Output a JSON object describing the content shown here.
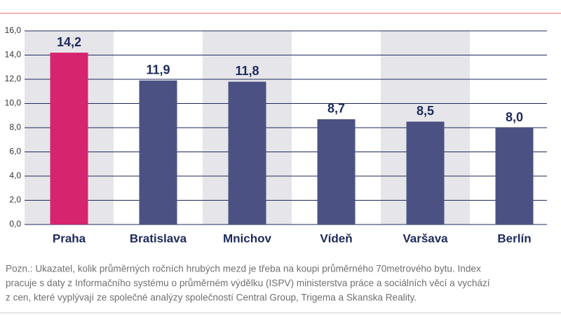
{
  "chart_data": {
    "type": "bar",
    "categories": [
      "Praha",
      "Bratislava",
      "Mnichov",
      "Vídeň",
      "Varšava",
      "Berlín"
    ],
    "values": [
      14.2,
      11.9,
      11.8,
      8.7,
      8.5,
      8.0
    ],
    "value_labels": [
      "14,2",
      "11,9",
      "11,8",
      "8,7",
      "8,5",
      "8,0"
    ],
    "colors": [
      "#d6246e",
      "#4b5283",
      "#4b5283",
      "#4b5283",
      "#4b5283",
      "#4b5283"
    ],
    "ylim": [
      0,
      16
    ],
    "yticks": [
      {
        "value": 0,
        "label": "0,0"
      },
      {
        "value": 2,
        "label": "2,0"
      },
      {
        "value": 4,
        "label": "4,0"
      },
      {
        "value": 6,
        "label": "6,0"
      },
      {
        "value": 8,
        "label": "8,0"
      },
      {
        "value": 10,
        "label": "10,0"
      },
      {
        "value": 12,
        "label": "12,0"
      },
      {
        "value": 14,
        "label": "14,0"
      },
      {
        "value": 16,
        "label": "16,0"
      }
    ],
    "grid": true,
    "note": [
      "Pozn.: Ukazatel, kolik průměrných ročních hrubých mezd je třeba na koupi průměrného 70metrového bytu. Index",
      "pracuje s daty z Informačního systému o průměrném výdělku (ISPV) ministerstva práce a sociálních věcí a vychází",
      "z cen, které vyplývají ze společné analýzy společností Central Group, Trigema a Skanska Reality."
    ]
  }
}
